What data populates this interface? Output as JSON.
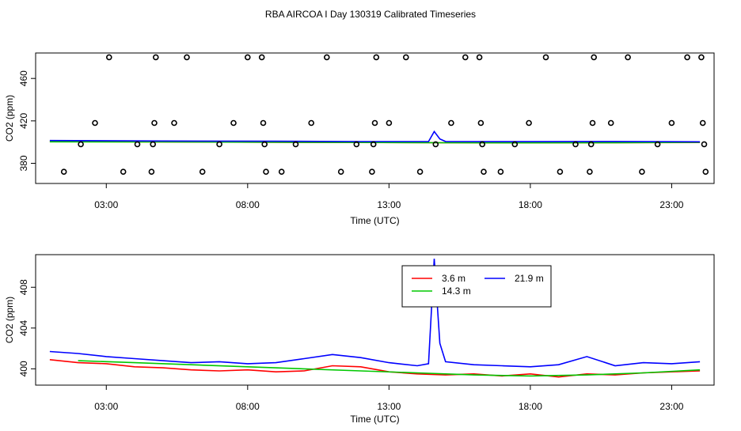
{
  "title": "RBA AIRCOA I  Day 130319  Calibrated Timeseries",
  "chart_data": [
    {
      "type": "scatter",
      "xlabel": "Time (UTC)",
      "ylabel": "CO2 (ppm)",
      "xlim": [
        0.5,
        24.5
      ],
      "ylim": [
        361,
        484
      ],
      "x_ticks": [
        3,
        8,
        13,
        18,
        23
      ],
      "x_tick_labels": [
        "03:00",
        "08:00",
        "13:00",
        "18:00",
        "23:00"
      ],
      "y_ticks": [
        380,
        420,
        460
      ],
      "y_tick_labels": [
        "380",
        "420",
        "460"
      ],
      "points": [
        {
          "x": 1.5,
          "y": 372
        },
        {
          "x": 2.1,
          "y": 398
        },
        {
          "x": 2.6,
          "y": 418
        },
        {
          "x": 3.1,
          "y": 480
        },
        {
          "x": 3.6,
          "y": 372
        },
        {
          "x": 4.1,
          "y": 398
        },
        {
          "x": 4.6,
          "y": 372
        },
        {
          "x": 4.65,
          "y": 398
        },
        {
          "x": 4.7,
          "y": 418
        },
        {
          "x": 4.75,
          "y": 480
        },
        {
          "x": 5.4,
          "y": 418
        },
        {
          "x": 5.85,
          "y": 480
        },
        {
          "x": 6.4,
          "y": 372
        },
        {
          "x": 7.0,
          "y": 398
        },
        {
          "x": 7.5,
          "y": 418
        },
        {
          "x": 8.0,
          "y": 480
        },
        {
          "x": 8.5,
          "y": 480
        },
        {
          "x": 8.55,
          "y": 418
        },
        {
          "x": 8.6,
          "y": 398
        },
        {
          "x": 8.65,
          "y": 372
        },
        {
          "x": 9.2,
          "y": 372
        },
        {
          "x": 9.7,
          "y": 398
        },
        {
          "x": 10.25,
          "y": 418
        },
        {
          "x": 10.8,
          "y": 480
        },
        {
          "x": 11.3,
          "y": 372
        },
        {
          "x": 11.85,
          "y": 398
        },
        {
          "x": 12.4,
          "y": 372
        },
        {
          "x": 12.45,
          "y": 398
        },
        {
          "x": 12.5,
          "y": 418
        },
        {
          "x": 12.55,
          "y": 480
        },
        {
          "x": 13.0,
          "y": 418
        },
        {
          "x": 13.6,
          "y": 480
        },
        {
          "x": 14.1,
          "y": 372
        },
        {
          "x": 14.65,
          "y": 398
        },
        {
          "x": 15.2,
          "y": 418
        },
        {
          "x": 15.7,
          "y": 480
        },
        {
          "x": 16.2,
          "y": 480
        },
        {
          "x": 16.25,
          "y": 418
        },
        {
          "x": 16.3,
          "y": 398
        },
        {
          "x": 16.35,
          "y": 372
        },
        {
          "x": 16.95,
          "y": 372
        },
        {
          "x": 17.45,
          "y": 398
        },
        {
          "x": 17.95,
          "y": 418
        },
        {
          "x": 18.55,
          "y": 480
        },
        {
          "x": 19.05,
          "y": 372
        },
        {
          "x": 19.6,
          "y": 398
        },
        {
          "x": 20.1,
          "y": 372
        },
        {
          "x": 20.15,
          "y": 398
        },
        {
          "x": 20.2,
          "y": 418
        },
        {
          "x": 20.25,
          "y": 480
        },
        {
          "x": 20.85,
          "y": 418
        },
        {
          "x": 21.45,
          "y": 480
        },
        {
          "x": 21.95,
          "y": 372
        },
        {
          "x": 22.5,
          "y": 398
        },
        {
          "x": 23.0,
          "y": 418
        },
        {
          "x": 23.55,
          "y": 480
        },
        {
          "x": 24.05,
          "y": 480
        },
        {
          "x": 24.1,
          "y": 418
        },
        {
          "x": 24.15,
          "y": 398
        },
        {
          "x": 24.2,
          "y": 372
        }
      ],
      "series": [
        {
          "name": "3.6 m",
          "color": "#ff0000",
          "x": [
            1.0,
            5.0,
            9.0,
            12.0,
            15.0,
            18.0,
            21.0,
            24.0
          ],
          "values": [
            400.5,
            400.2,
            399.8,
            399.6,
            399.4,
            399.3,
            399.5,
            399.6
          ]
        },
        {
          "name": "14.3 m",
          "color": "#00c800",
          "x": [
            1.0,
            5.0,
            9.0,
            12.0,
            15.0,
            18.0,
            21.0,
            24.0
          ],
          "values": [
            400.3,
            400.1,
            399.9,
            399.7,
            399.4,
            399.3,
            399.5,
            399.8
          ]
        },
        {
          "name": "21.9 m",
          "color": "#0000ff",
          "x": [
            1.0,
            5.0,
            9.0,
            12.0,
            14.4,
            14.6,
            14.8,
            15.0,
            18.0,
            21.0,
            24.0
          ],
          "values": [
            401.5,
            401.0,
            400.8,
            400.5,
            400.5,
            410.0,
            403.0,
            400.6,
            400.4,
            400.6,
            400.3
          ]
        }
      ]
    },
    {
      "type": "line",
      "xlabel": "Time (UTC)",
      "ylabel": "CO2 (ppm)",
      "xlim": [
        0.5,
        24.5
      ],
      "ylim": [
        398.4,
        411.2
      ],
      "x_ticks": [
        3,
        8,
        13,
        18,
        23
      ],
      "x_tick_labels": [
        "03:00",
        "08:00",
        "13:00",
        "18:00",
        "23:00"
      ],
      "y_ticks": [
        400,
        404,
        408
      ],
      "y_tick_labels": [
        "400",
        "404",
        "408"
      ],
      "legend": {
        "position": "top-center",
        "entries": [
          "3.6 m",
          "21.9 m",
          "14.3 m"
        ]
      },
      "series": [
        {
          "name": "3.6 m",
          "color": "#ff0000",
          "x": [
            1.0,
            2.0,
            3.0,
            4.0,
            5.0,
            6.0,
            7.0,
            8.0,
            9.0,
            10.0,
            11.0,
            12.0,
            13.0,
            14.0,
            15.0,
            16.0,
            17.0,
            18.0,
            19.0,
            20.0,
            21.0,
            22.0,
            23.0,
            24.0
          ],
          "values": [
            400.9,
            400.6,
            400.5,
            400.2,
            400.1,
            399.9,
            399.8,
            399.9,
            399.7,
            399.8,
            400.3,
            400.2,
            399.7,
            399.5,
            399.4,
            399.5,
            399.3,
            399.5,
            399.2,
            399.5,
            399.4,
            399.6,
            399.7,
            399.8
          ]
        },
        {
          "name": "14.3 m",
          "color": "#00c800",
          "x": [
            2.0,
            4.0,
            6.0,
            8.0,
            10.0,
            12.0,
            14.0,
            16.0,
            18.0,
            20.0,
            22.0,
            24.0
          ],
          "values": [
            400.8,
            400.6,
            400.4,
            400.2,
            400.0,
            399.8,
            399.6,
            399.4,
            399.3,
            399.4,
            399.6,
            399.9
          ]
        },
        {
          "name": "21.9 m",
          "color": "#0000ff",
          "x": [
            1.0,
            2.0,
            3.0,
            4.0,
            5.0,
            6.0,
            7.0,
            8.0,
            9.0,
            10.0,
            11.0,
            12.0,
            13.0,
            14.0,
            14.4,
            14.6,
            14.8,
            15.0,
            16.0,
            17.0,
            18.0,
            19.0,
            20.0,
            21.0,
            22.0,
            23.0,
            24.0
          ],
          "values": [
            401.7,
            401.5,
            401.2,
            401.0,
            400.8,
            400.6,
            400.7,
            400.5,
            400.6,
            401.0,
            401.4,
            401.1,
            400.6,
            400.3,
            400.5,
            410.8,
            402.5,
            400.7,
            400.4,
            400.3,
            400.2,
            400.4,
            401.2,
            400.3,
            400.6,
            400.5,
            400.7
          ]
        }
      ]
    }
  ]
}
